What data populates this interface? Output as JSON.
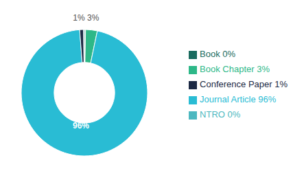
{
  "chart_data": {
    "type": "donut",
    "categories": [
      "Book 0%",
      "Book Chapter 3%",
      "Journal Article 96%",
      "Conference Paper 1%",
      "NTRO 0%"
    ],
    "values": [
      0.3,
      3,
      96,
      1,
      0.2
    ],
    "colors": [
      "#1a6b5e",
      "#2db888",
      "#29bcd4",
      "#1c2a44",
      "#4db8c0"
    ],
    "annotations": [
      {
        "text": "96%",
        "color": "#ffffff"
      },
      {
        "text": "1% 3%",
        "color": "#555555"
      }
    ],
    "legend": "right"
  }
}
